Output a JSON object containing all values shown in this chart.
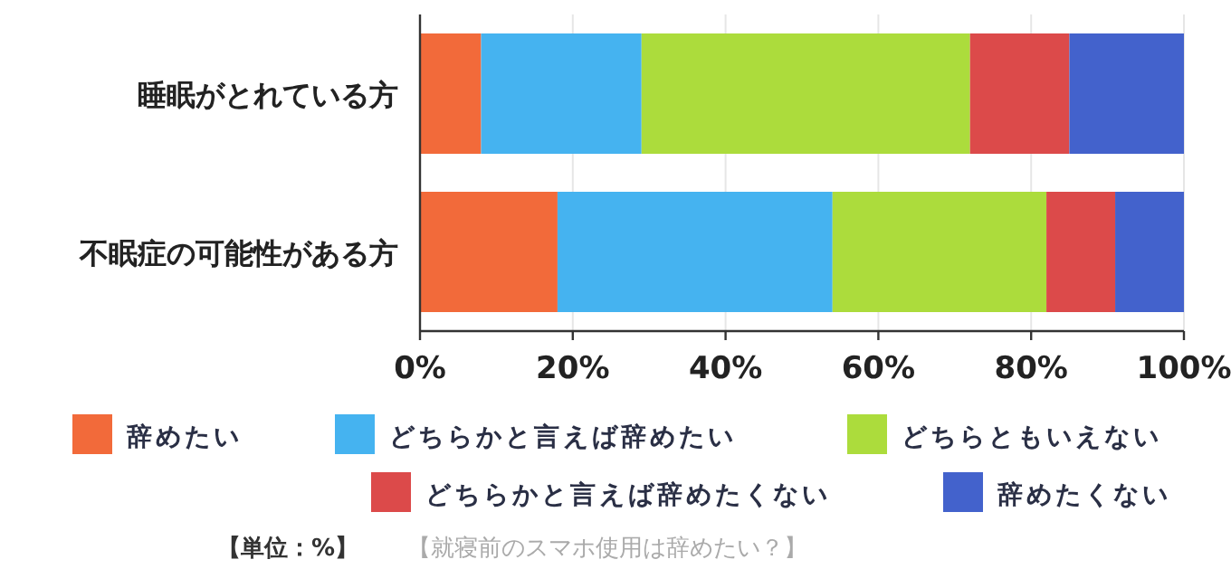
{
  "chart_data": {
    "type": "bar",
    "orientation": "horizontal",
    "stacked": true,
    "categories": [
      "睡眠がとれている方",
      "不眠症の可能性がある方"
    ],
    "series": [
      {
        "name": "辞めたい",
        "color": "#f26a3a",
        "values": [
          8,
          18
        ]
      },
      {
        "name": "どちらかと言えば辞めたい",
        "color": "#45b3f0",
        "values": [
          21,
          36
        ]
      },
      {
        "name": "どちらともいえない",
        "color": "#acdc3c",
        "values": [
          43,
          28
        ]
      },
      {
        "name": "どちらかと言えば辞めたくない",
        "color": "#dc4a4a",
        "values": [
          13,
          9
        ]
      },
      {
        "name": "辞めたくない",
        "color": "#4362cc",
        "values": [
          15,
          9
        ]
      }
    ],
    "xlim": [
      0,
      100
    ],
    "xticks": [
      {
        "value": 0,
        "label": "0%"
      },
      {
        "value": 20,
        "label": "20%"
      },
      {
        "value": 40,
        "label": "40%"
      },
      {
        "value": 60,
        "label": "60%"
      },
      {
        "value": 80,
        "label": "80%"
      },
      {
        "value": 100,
        "label": "100%"
      }
    ],
    "grid": "x",
    "legend": "bottom",
    "annotations": [
      "【単位：%】",
      "【就寝前のスマホ使用は辞めたい？】"
    ]
  }
}
